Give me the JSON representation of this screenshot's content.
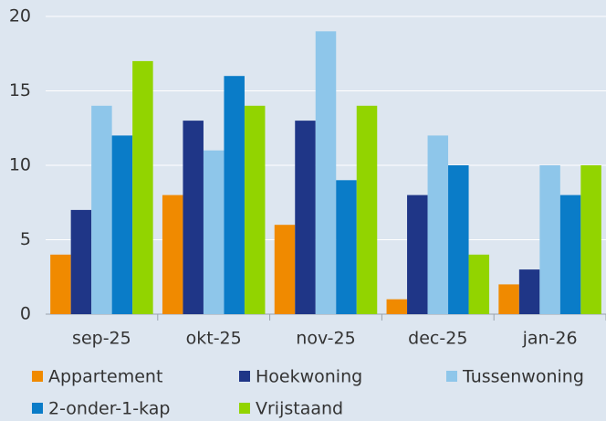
{
  "chart_data": {
    "type": "bar",
    "categories": [
      "sep-25",
      "okt-25",
      "nov-25",
      "dec-25",
      "jan-26"
    ],
    "series": [
      {
        "name": "Appartement",
        "color": "#f08a00",
        "values": [
          4,
          8,
          6,
          1,
          2
        ]
      },
      {
        "name": "Hoekwoning",
        "color": "#1f3687",
        "values": [
          7,
          13,
          13,
          8,
          3
        ]
      },
      {
        "name": "Tussenwoning",
        "color": "#8ec6ea",
        "values": [
          14,
          11,
          19,
          12,
          10
        ]
      },
      {
        "name": "2-onder-1-kap",
        "color": "#0a7cc8",
        "values": [
          12,
          16,
          9,
          10,
          8
        ]
      },
      {
        "name": "Vrijstaand",
        "color": "#92d400",
        "values": [
          17,
          14,
          14,
          4,
          10
        ]
      }
    ],
    "ylim": [
      0,
      20
    ],
    "yticks": [
      0,
      5,
      10,
      15,
      20
    ],
    "grid": true,
    "legend": "bottom"
  }
}
